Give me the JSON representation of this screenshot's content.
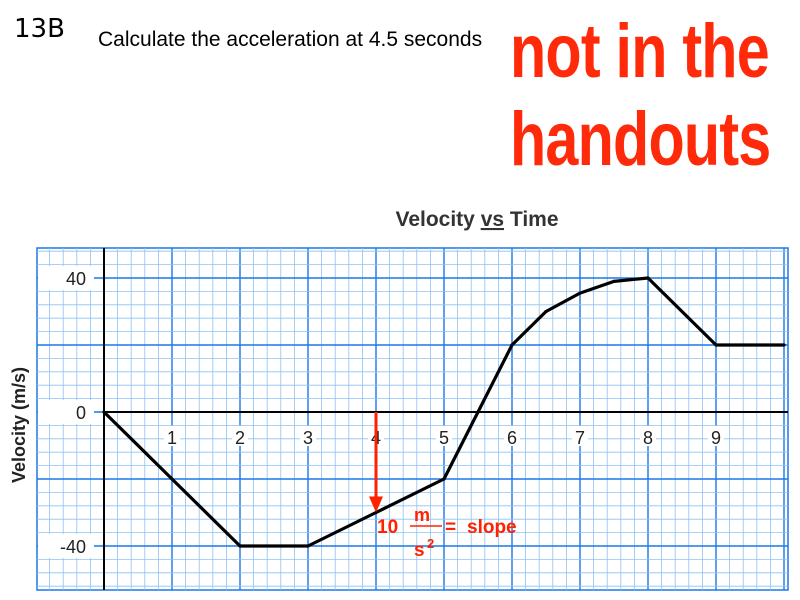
{
  "slide": {
    "number": "13B",
    "question": "Calculate the acceleration at 4.5 seconds",
    "stamp_line1": "not in the",
    "stamp_line2": "handouts"
  },
  "chart_data": {
    "type": "line",
    "title": "Velocity vs Time",
    "title_parts": [
      "Velocity ",
      "vs",
      " Time"
    ],
    "xlabel": "",
    "ylabel": "Velocity (m/s)",
    "x_ticks": [
      1,
      2,
      3,
      4,
      5,
      6,
      7,
      8,
      9
    ],
    "y_ticks": [
      40,
      0,
      -40
    ],
    "xlim": [
      0,
      10
    ],
    "ylim": [
      -52,
      48
    ],
    "grid": true,
    "series": [
      {
        "name": "",
        "x": [
          0,
          1,
          2,
          3,
          4,
          5,
          5.5,
          6,
          6.5,
          7,
          7.5,
          8,
          9,
          10
        ],
        "y": [
          0,
          -20,
          -40,
          -40,
          -30,
          -20,
          0,
          20,
          30,
          35.5,
          39,
          40,
          20,
          20
        ]
      }
    ],
    "annotation": {
      "arrow_x": 4,
      "arrow_from_y": 0,
      "arrow_to_y": -30,
      "value": "10",
      "unit_num": "m",
      "unit_den": "s",
      "unit_exp": "2",
      "eq": "=",
      "word": "slope"
    },
    "colors": {
      "grid_major": "#1a78e8",
      "grid_minor": "#8ec2f5",
      "line": "#000000",
      "annotation": "#ff2200"
    }
  }
}
